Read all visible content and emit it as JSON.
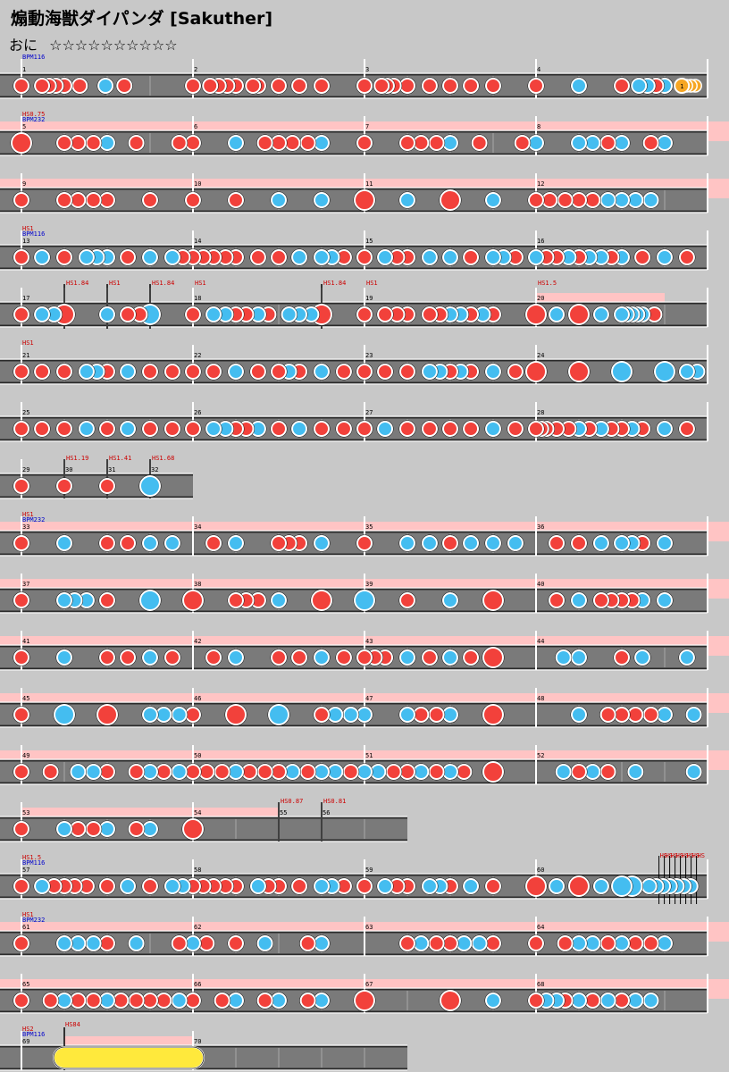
{
  "title": "煽動海獣ダイパンダ [Sakuther]",
  "difficulty": {
    "label": "おに",
    "stars": "☆☆☆☆☆☆☆☆☆☆"
  },
  "colors": {
    "don": "#f2413b",
    "ka": "#44bdf0",
    "lane": "#7a7a7a",
    "scroll_band": "#ffc4c4",
    "balloon": "#f6a623",
    "drumroll": "#ffe93c",
    "event_hs": "#cc0000",
    "event_bpm": "#0000cc"
  },
  "note_types": {
    "d": "don",
    "k": "ka",
    "D": "big-don",
    "K": "big-ka",
    "b": "balloon",
    "R": "big-drumroll"
  },
  "rows": [
    {
      "measures": [
        "1",
        "2",
        "3",
        "4"
      ],
      "events": [
        "BPM116"
      ],
      "band": false,
      "notes": [
        "d0.00",
        "d0.12",
        "d0.16",
        "d0.20",
        "d0.25",
        "d0.34",
        "k0.49",
        "d0.60",
        "d1.00",
        "d1.10",
        "d1.15",
        "d1.20",
        "d1.25",
        "d1.35",
        "d1.38",
        "d1.50",
        "d1.62",
        "d1.75",
        "d2.00",
        "d2.10",
        "d2.13",
        "d2.17",
        "d2.25",
        "d2.38",
        "d2.50",
        "d2.62",
        "d2.75",
        "d3.00",
        "k3.25",
        "d3.50",
        "k3.60",
        "k3.65",
        "d3.70",
        "k3.75",
        "b3.85"
      ]
    },
    {
      "measures": [
        "5",
        "6",
        "7",
        "8"
      ],
      "events": [
        "HS0.75",
        "BPM232"
      ],
      "band": true,
      "notes": [
        "D0.00",
        "d0.25",
        "d0.33",
        "d0.42",
        "k0.50",
        "d0.67",
        "d0.92",
        "d1.00",
        "k1.25",
        "d1.42",
        "d1.50",
        "d1.58",
        "d1.67",
        "k1.75",
        "d2.00",
        "d2.25",
        "d2.33",
        "d2.42",
        "k2.50",
        "d2.67",
        "d2.92",
        "k3.00",
        "k3.25",
        "k3.33",
        "d3.42",
        "k3.50",
        "d3.67",
        "k3.75"
      ]
    },
    {
      "measures": [
        "9",
        "10",
        "11",
        "12"
      ],
      "events": [],
      "band": true,
      "notes": [
        "d0.00",
        "d0.25",
        "d0.33",
        "d0.42",
        "d0.50",
        "d0.75",
        "d1.00",
        "d1.25",
        "k1.50",
        "k1.75",
        "D2.00",
        "k2.25",
        "D2.50",
        "k2.75",
        "d3.00",
        "d3.08",
        "d3.17",
        "d3.25",
        "d3.33",
        "k3.42",
        "k3.50",
        "k3.58",
        "k3.67"
      ]
    },
    {
      "measures": [
        "13",
        "14",
        "15",
        "16"
      ],
      "events": [
        "HS1",
        "BPM116"
      ],
      "band": false,
      "notes": [
        "d0.00",
        "k0.12",
        "d0.25",
        "k0.38",
        "k0.44",
        "k0.50",
        "d0.62",
        "k0.75",
        "k0.88",
        "d0.94",
        "d1.00",
        "d1.06",
        "d1.12",
        "d1.19",
        "d1.25",
        "d1.38",
        "d1.50",
        "k1.62",
        "k1.75",
        "k1.81",
        "d1.88",
        "d2.00",
        "k2.12",
        "d2.19",
        "d2.25",
        "k2.38",
        "k2.50",
        "d2.62",
        "k2.75",
        "k2.81",
        "d2.88",
        "k3.00",
        "d3.06",
        "d3.12",
        "k3.19",
        "d3.25",
        "k3.31",
        "k3.38",
        "d3.44",
        "k3.50",
        "d3.62",
        "k3.75",
        "d3.88"
      ]
    },
    {
      "measures": [
        "17",
        "",
        "",
        "",
        "18",
        "",
        "",
        "19",
        "20"
      ],
      "measure_pos": [
        0,
        0.25,
        0.5,
        0.75,
        1.0,
        1.75,
        2.0,
        2.0,
        3.0
      ],
      "events": [
        "HS1.84",
        "HS1",
        "HS1.84",
        "HS1",
        "HS1.84",
        "HS1",
        "HS1.5"
      ],
      "band_segment": [
        3.0,
        3.75
      ],
      "notes": [
        "d0.00",
        "k0.12",
        "k0.19",
        "D0.25",
        "k0.50",
        "d0.62",
        "d0.69",
        "K0.75",
        "d1.00",
        "k1.12",
        "k1.19",
        "d1.25",
        "d1.31",
        "k1.38",
        "d1.44",
        "k1.56",
        "k1.62",
        "k1.69",
        "D1.75",
        "k1.72",
        "d2.00",
        "d2.12",
        "d2.19",
        "d2.25",
        "d2.38",
        "d2.44",
        "k2.50",
        "k2.56",
        "d2.62",
        "k2.69",
        "d2.75",
        "D3.00",
        "k3.12",
        "D3.25",
        "k3.38",
        "k3.50",
        "k3.53",
        "k3.56",
        "k3.59",
        "k3.62",
        "d3.69"
      ]
    },
    {
      "measures": [
        "21",
        "22",
        "23",
        "24"
      ],
      "events": [
        "HS1"
      ],
      "band": false,
      "notes": [
        "d0.00",
        "d0.12",
        "d0.25",
        "k0.38",
        "k0.44",
        "d0.50",
        "k0.62",
        "d0.75",
        "d0.88",
        "d1.00",
        "d1.12",
        "k1.25",
        "d1.38",
        "d1.50",
        "k1.56",
        "d1.62",
        "k1.75",
        "d1.88",
        "d2.00",
        "d2.12",
        "d2.25",
        "k2.38",
        "k2.44",
        "d2.50",
        "k2.56",
        "d2.62",
        "k2.75",
        "d2.88",
        "D3.00",
        "D3.25",
        "K3.50",
        "K3.75",
        "k3.88",
        "k3.94"
      ]
    },
    {
      "measures": [
        "25",
        "26",
        "27",
        "28"
      ],
      "events": [],
      "band": false,
      "notes": [
        "d0.00",
        "d0.12",
        "d0.25",
        "k0.38",
        "d0.50",
        "k0.62",
        "d0.75",
        "d0.88",
        "d1.00",
        "k1.12",
        "k1.19",
        "d1.25",
        "d1.31",
        "k1.38",
        "d1.50",
        "k1.62",
        "d1.75",
        "d1.88",
        "d2.00",
        "k2.12",
        "d2.25",
        "d2.38",
        "d2.50",
        "d2.62",
        "k2.75",
        "d2.88",
        "d3.00",
        "d3.03",
        "d3.06",
        "d3.12",
        "d3.19",
        "k3.25",
        "d3.31",
        "k3.38",
        "d3.44",
        "d3.50",
        "k3.56",
        "d3.62",
        "k3.75",
        "d3.88"
      ]
    },
    {
      "measures": [
        "29",
        "30",
        "31",
        "32"
      ],
      "measure_pos": [
        0,
        0.25,
        0.5,
        0.75
      ],
      "width_measures": 1.0,
      "events": [
        "HS1.19",
        "HS1.41",
        "HS1.68"
      ],
      "event_pos": [
        0.25,
        0.5,
        0.75
      ],
      "band": false,
      "notes": [
        "d0.00",
        "d0.25",
        "d0.50",
        "K0.75"
      ]
    },
    {
      "measures": [
        "33",
        "34",
        "35",
        "36"
      ],
      "events": [
        "HS1",
        "BPM232"
      ],
      "band": true,
      "notes": [
        "d0.00",
        "k0.25",
        "d0.50",
        "d0.62",
        "k0.75",
        "k0.88",
        "d1.12",
        "k1.25",
        "d1.50",
        "d1.56",
        "d1.62",
        "k1.75",
        "d2.00",
        "k2.25",
        "k2.38",
        "d2.50",
        "k2.62",
        "k2.75",
        "k2.88",
        "d3.12",
        "d3.25",
        "k3.38",
        "k3.50",
        "k3.56",
        "d3.62",
        "k3.75"
      ]
    },
    {
      "measures": [
        "37",
        "38",
        "39",
        "40"
      ],
      "events": [],
      "band": true,
      "notes": [
        "d0.00",
        "k0.25",
        "k0.31",
        "k0.38",
        "d0.50",
        "K0.75",
        "D1.00",
        "d1.25",
        "d1.31",
        "d1.38",
        "k1.50",
        "D1.75",
        "K2.00",
        "d2.25",
        "k2.50",
        "D2.75",
        "d3.12",
        "k3.25",
        "d3.38",
        "d3.44",
        "d3.50",
        "d3.56",
        "k3.62",
        "k3.75"
      ]
    },
    {
      "measures": [
        "41",
        "42",
        "43",
        "44"
      ],
      "events": [],
      "band": true,
      "notes": [
        "d0.00",
        "k0.25",
        "d0.50",
        "d0.62",
        "k0.75",
        "d0.88",
        "d1.12",
        "k1.25",
        "d1.50",
        "d1.62",
        "k1.75",
        "d1.88",
        "d2.00",
        "d2.06",
        "d2.12",
        "k2.25",
        "d2.38",
        "k2.50",
        "d2.62",
        "D2.75",
        "k3.16",
        "k3.25",
        "d3.50",
        "k3.62",
        "k3.88"
      ]
    },
    {
      "measures": [
        "45",
        "46",
        "47",
        "48"
      ],
      "events": [],
      "band": true,
      "notes": [
        "d0.00",
        "K0.25",
        "D0.50",
        "k0.75",
        "k0.83",
        "k0.92",
        "d1.00",
        "D1.25",
        "K1.50",
        "d1.75",
        "k1.83",
        "k1.92",
        "k2.00",
        "k2.25",
        "d2.33",
        "d2.42",
        "k2.50",
        "D2.75",
        "k3.25",
        "d3.42",
        "d3.50",
        "d3.58",
        "d3.67",
        "k3.75",
        "k3.92"
      ]
    },
    {
      "measures": [
        "49",
        "50",
        "51",
        "52"
      ],
      "events": [],
      "band": true,
      "notes": [
        "d0.00",
        "d0.17",
        "k0.33",
        "k0.42",
        "d0.50",
        "d0.67",
        "k0.75",
        "d0.83",
        "k0.92",
        "d1.00",
        "d1.08",
        "d1.17",
        "k1.25",
        "d1.33",
        "d1.42",
        "d1.50",
        "k1.58",
        "d1.67",
        "k1.75",
        "k1.83",
        "d1.92",
        "k2.00",
        "k2.08",
        "d2.17",
        "d2.25",
        "k2.33",
        "d2.42",
        "k2.50",
        "d2.58",
        "D2.75",
        "k3.16",
        "d3.25",
        "k3.33",
        "d3.42",
        "k3.58",
        "k3.92"
      ]
    },
    {
      "measures": [
        "53",
        "54",
        "55",
        "56"
      ],
      "measure_pos": [
        0,
        1.0,
        1.5,
        1.75
      ],
      "width_measures": 2.25,
      "events": [
        "HS0.87",
        "HS0.81"
      ],
      "event_pos": [
        1.5,
        1.75
      ],
      "band_segment": [
        0,
        1.5
      ],
      "notes": [
        "d0.00",
        "k0.25",
        "d0.33",
        "d0.42",
        "k0.50",
        "d0.67",
        "k0.75",
        "D1.00"
      ]
    },
    {
      "measures": [
        "57",
        "58",
        "59",
        "60"
      ],
      "events": [
        "HS1.5",
        "BPM116"
      ],
      "band": false,
      "many_events_at": 3.8,
      "notes": [
        "d0.00",
        "k0.12",
        "d0.19",
        "d0.25",
        "d0.31",
        "d0.38",
        "d0.50",
        "k0.62",
        "d0.75",
        "k0.88",
        "k0.94",
        "d1.00",
        "d1.06",
        "d1.12",
        "d1.19",
        "d1.25",
        "k1.38",
        "d1.44",
        "d1.50",
        "d1.62",
        "k1.75",
        "k1.81",
        "d1.88",
        "d2.00",
        "k2.12",
        "d2.19",
        "d2.25",
        "k2.38",
        "k2.44",
        "d2.50",
        "k2.62",
        "d2.75",
        "D3.00",
        "k3.12",
        "D3.25",
        "k3.38",
        "K3.50",
        "K3.56",
        "k3.66",
        "k3.70",
        "k3.74",
        "k3.78",
        "k3.82",
        "k3.86",
        "k3.90"
      ]
    },
    {
      "measures": [
        "61",
        "62",
        "63",
        "64"
      ],
      "events": [
        "HS1",
        "BPM232"
      ],
      "band": true,
      "notes": [
        "d0.00",
        "k0.25",
        "k0.33",
        "k0.42",
        "d0.50",
        "k0.67",
        "d0.92",
        "k1.00",
        "d1.08",
        "d1.25",
        "k1.42",
        "d1.67",
        "k1.75",
        "d2.25",
        "k2.33",
        "d2.42",
        "d2.50",
        "k2.58",
        "k2.67",
        "d2.75",
        "d3.00",
        "d3.17",
        "k3.25",
        "k3.33",
        "d3.42",
        "k3.50",
        "d3.58",
        "d3.67",
        "k3.75"
      ]
    },
    {
      "measures": [
        "65",
        "66",
        "67",
        "68"
      ],
      "events": [],
      "band": true,
      "notes": [
        "d0.00",
        "d0.17",
        "k0.25",
        "d0.33",
        "d0.42",
        "k0.50",
        "d0.58",
        "d0.67",
        "d0.75",
        "d0.83",
        "k0.92",
        "d1.00",
        "d1.17",
        "k1.25",
        "d1.42",
        "k1.50",
        "d1.67",
        "k1.75",
        "D2.00",
        "D2.50",
        "k2.75",
        "d3.00",
        "k3.06",
        "k3.12",
        "d3.17",
        "k3.25",
        "d3.33",
        "k3.42",
        "d3.50",
        "k3.58",
        "k3.67"
      ]
    },
    {
      "measures": [
        "69",
        "70"
      ],
      "measure_pos": [
        0,
        1.0
      ],
      "width_measures": 2.25,
      "events": [
        "HS2",
        "BPM116",
        "HS84"
      ],
      "band_segment": [
        0.25,
        1.0
      ],
      "notes": [
        "R0.25-1.0"
      ]
    }
  ]
}
